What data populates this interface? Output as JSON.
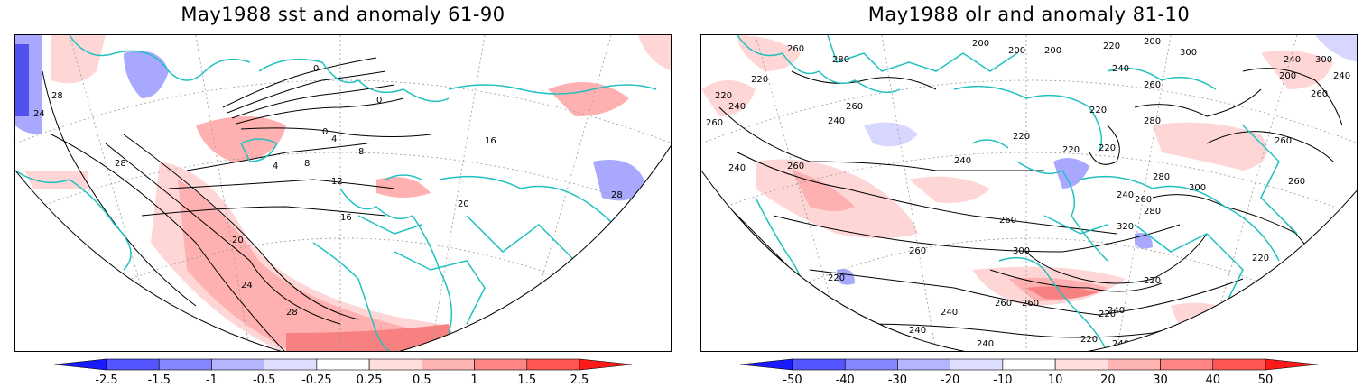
{
  "panels": [
    {
      "id": "sst",
      "title": "May1988 sst and anomaly 61-90",
      "contour_labels": [
        "0",
        "0",
        "0",
        "4",
        "4",
        "8",
        "8",
        "12",
        "16",
        "16",
        "20",
        "20",
        "24",
        "24",
        "28",
        "28",
        "28",
        "28"
      ],
      "colorbar": {
        "levels": [
          "-2.5",
          "-1.5",
          "-1",
          "-0.5",
          "-0.25",
          "0.25",
          "0.5",
          "1",
          "1.5",
          "2.5"
        ],
        "colors": [
          "#1a1aff",
          "#5555ff",
          "#8585ff",
          "#b4b4ff",
          "#dedeff",
          "#ffffff",
          "#ffdede",
          "#ffb4b4",
          "#ff8585",
          "#ff5555",
          "#ff1a1a"
        ]
      }
    },
    {
      "id": "olr",
      "title": "May1988 olr and anomaly 81-10",
      "contour_labels": [
        "260",
        "280",
        "200",
        "200",
        "200",
        "220",
        "200",
        "240",
        "300",
        "220",
        "220",
        "260",
        "240",
        "260",
        "240",
        "220",
        "280",
        "220",
        "260",
        "220",
        "240",
        "260",
        "240",
        "220",
        "200",
        "240",
        "260",
        "240",
        "300",
        "260",
        "240",
        "320",
        "260",
        "260",
        "280",
        "300",
        "220",
        "220",
        "280",
        "260",
        "300",
        "240",
        "260",
        "220",
        "220",
        "240",
        "240",
        "240",
        "220",
        "240",
        "260",
        "220",
        "260"
      ],
      "colorbar": {
        "levels": [
          "-50",
          "-40",
          "-30",
          "-20",
          "-10",
          "10",
          "20",
          "30",
          "40",
          "50"
        ],
        "colors": [
          "#1a1aff",
          "#5555ff",
          "#8585ff",
          "#b4b4ff",
          "#dedeff",
          "#ffffff",
          "#ffdede",
          "#ffb4b4",
          "#ff8585",
          "#ff5555",
          "#ff1a1a"
        ]
      }
    }
  ],
  "style": {
    "coastline_color": "#20c0c0",
    "contour_color": "#000000",
    "grid_color": "#9a9a9a",
    "warm_light": "#ffd6d6",
    "warm_mid": "#ffb0b0",
    "warm_strong": "#f78080",
    "cool_light": "#d6d6ff",
    "cool_mid": "#a8a8ff",
    "cool_strong": "#5050f0"
  }
}
